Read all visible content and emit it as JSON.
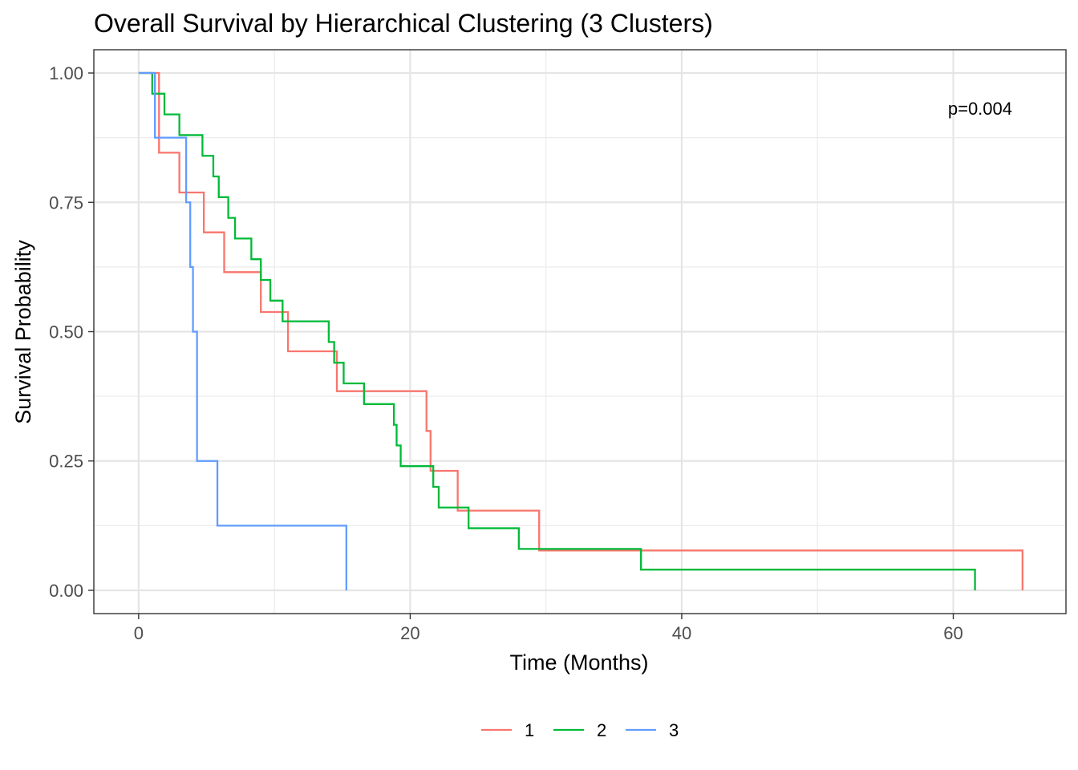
{
  "chart_data": {
    "type": "line",
    "title": "Overall Survival by Hierarchical Clustering (3 Clusters)",
    "xlabel": "Time (Months)",
    "ylabel": "Survival Probability",
    "xlim": [
      -3.3,
      68.3
    ],
    "ylim": [
      -0.045,
      1.045
    ],
    "x_ticks": [
      0,
      20,
      40,
      60
    ],
    "x_tick_labels": [
      "0",
      "20",
      "40",
      "60"
    ],
    "y_ticks": [
      0,
      0.25,
      0.5,
      0.75,
      1
    ],
    "y_tick_labels": [
      "0.00",
      "0.25",
      "0.50",
      "0.75",
      "1.00"
    ],
    "grid": true,
    "legend_position": "bottom",
    "annotation": "p=0.004",
    "series": [
      {
        "name": "1",
        "color": "#F8766D",
        "x": [
          0,
          1.5,
          3.0,
          4.8,
          6.3,
          9.0,
          11.0,
          14.6,
          21.2,
          21.5,
          23.5,
          29.5,
          65.1
        ],
        "y": [
          1.0,
          0.846,
          0.769,
          0.692,
          0.615,
          0.538,
          0.462,
          0.385,
          0.308,
          0.231,
          0.154,
          0.077,
          0.0
        ]
      },
      {
        "name": "2",
        "color": "#00BA38",
        "x": [
          0,
          1.0,
          1.9,
          3.0,
          4.7,
          5.5,
          5.9,
          6.6,
          7.1,
          8.3,
          9.0,
          9.7,
          10.6,
          14.0,
          14.4,
          15.1,
          16.6,
          18.8,
          19.0,
          19.3,
          21.7,
          22.1,
          24.3,
          28.0,
          37.0,
          61.6
        ],
        "y": [
          1.0,
          0.96,
          0.92,
          0.88,
          0.84,
          0.8,
          0.76,
          0.72,
          0.68,
          0.64,
          0.6,
          0.56,
          0.52,
          0.48,
          0.44,
          0.4,
          0.36,
          0.32,
          0.28,
          0.24,
          0.2,
          0.16,
          0.12,
          0.08,
          0.04,
          0.0
        ]
      },
      {
        "name": "3",
        "color": "#619CFF",
        "x": [
          0,
          1.2,
          3.5,
          3.8,
          4.0,
          4.3,
          5.8,
          15.3
        ],
        "y": [
          1.0,
          0.875,
          0.75,
          0.625,
          0.5,
          0.25,
          0.125,
          0.0
        ]
      }
    ]
  }
}
